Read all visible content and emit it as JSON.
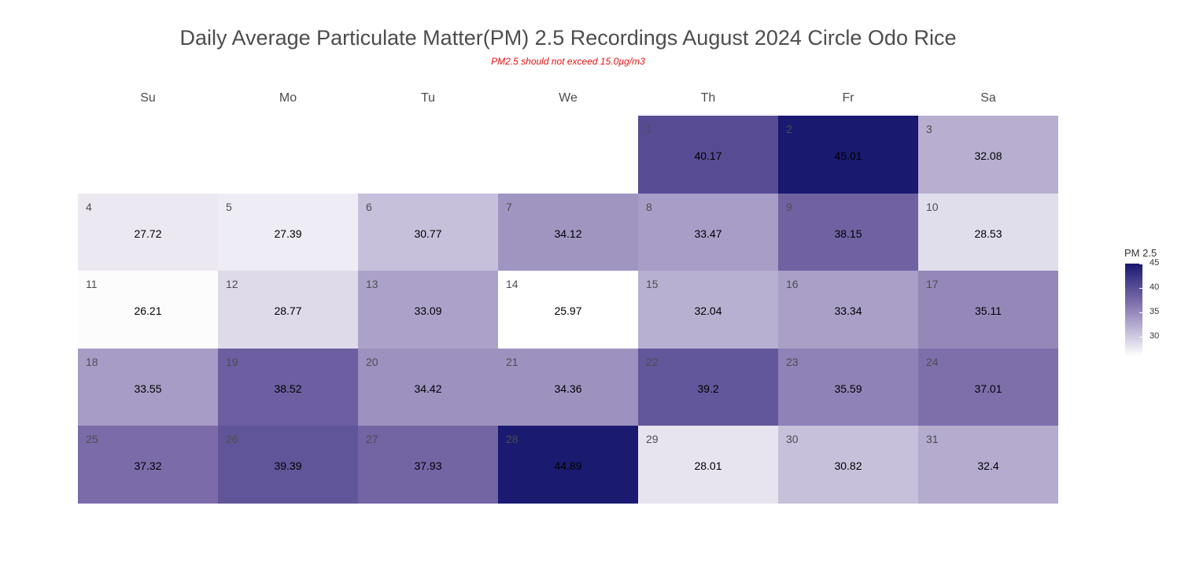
{
  "title": "Daily Average Particulate Matter(PM) 2.5 Recordings August 2024 Circle Odo Rice",
  "subtitle": "PM2.5 should not exceed 15.0µg/m3",
  "colors": {
    "low": "#ffffff",
    "high": "#191970",
    "title": "#4d4d4d",
    "subtitle": "#ee1111"
  },
  "chart_data": {
    "type": "heatmap",
    "title": "Daily Average Particulate Matter(PM) 2.5 Recordings August 2024 Circle Odo Rice",
    "subtitle": "PM2.5 should not exceed 15.0µg/m3",
    "weekdays": [
      "Su",
      "Mo",
      "Tu",
      "We",
      "Th",
      "Fr",
      "Sa"
    ],
    "first_weekday_index": 4,
    "days": [
      1,
      2,
      3,
      4,
      5,
      6,
      7,
      8,
      9,
      10,
      11,
      12,
      13,
      14,
      15,
      16,
      17,
      18,
      19,
      20,
      21,
      22,
      23,
      24,
      25,
      26,
      27,
      28,
      29,
      30,
      31
    ],
    "values": [
      40.17,
      45.01,
      32.08,
      27.72,
      27.39,
      30.77,
      34.12,
      33.47,
      38.15,
      28.53,
      26.21,
      28.77,
      33.09,
      25.97,
      32.04,
      33.34,
      35.11,
      33.55,
      38.52,
      34.42,
      34.36,
      39.2,
      35.59,
      37.01,
      37.32,
      39.39,
      37.93,
      44.89,
      28.01,
      30.82,
      32.4
    ],
    "value_labels": [
      "40.17",
      "45.01",
      "32.08",
      "27.72",
      "27.39",
      "30.77",
      "34.12",
      "33.47",
      "38.15",
      "28.53",
      "26.21",
      "28.77",
      "33.09",
      "25.97",
      "32.04",
      "33.34",
      "35.11",
      "33.55",
      "38.52",
      "34.42",
      "34.36",
      "39.2",
      "35.59",
      "37.01",
      "37.32",
      "39.39",
      "37.93",
      "44.89",
      "28.01",
      "30.82",
      "32.4"
    ],
    "color_range": [
      25.97,
      45.01
    ],
    "legend": {
      "title": "PM 2.5",
      "ticks": [
        30,
        35,
        40,
        45
      ],
      "tick_labels": [
        "30",
        "35",
        "40",
        "45"
      ],
      "position": "right"
    }
  }
}
